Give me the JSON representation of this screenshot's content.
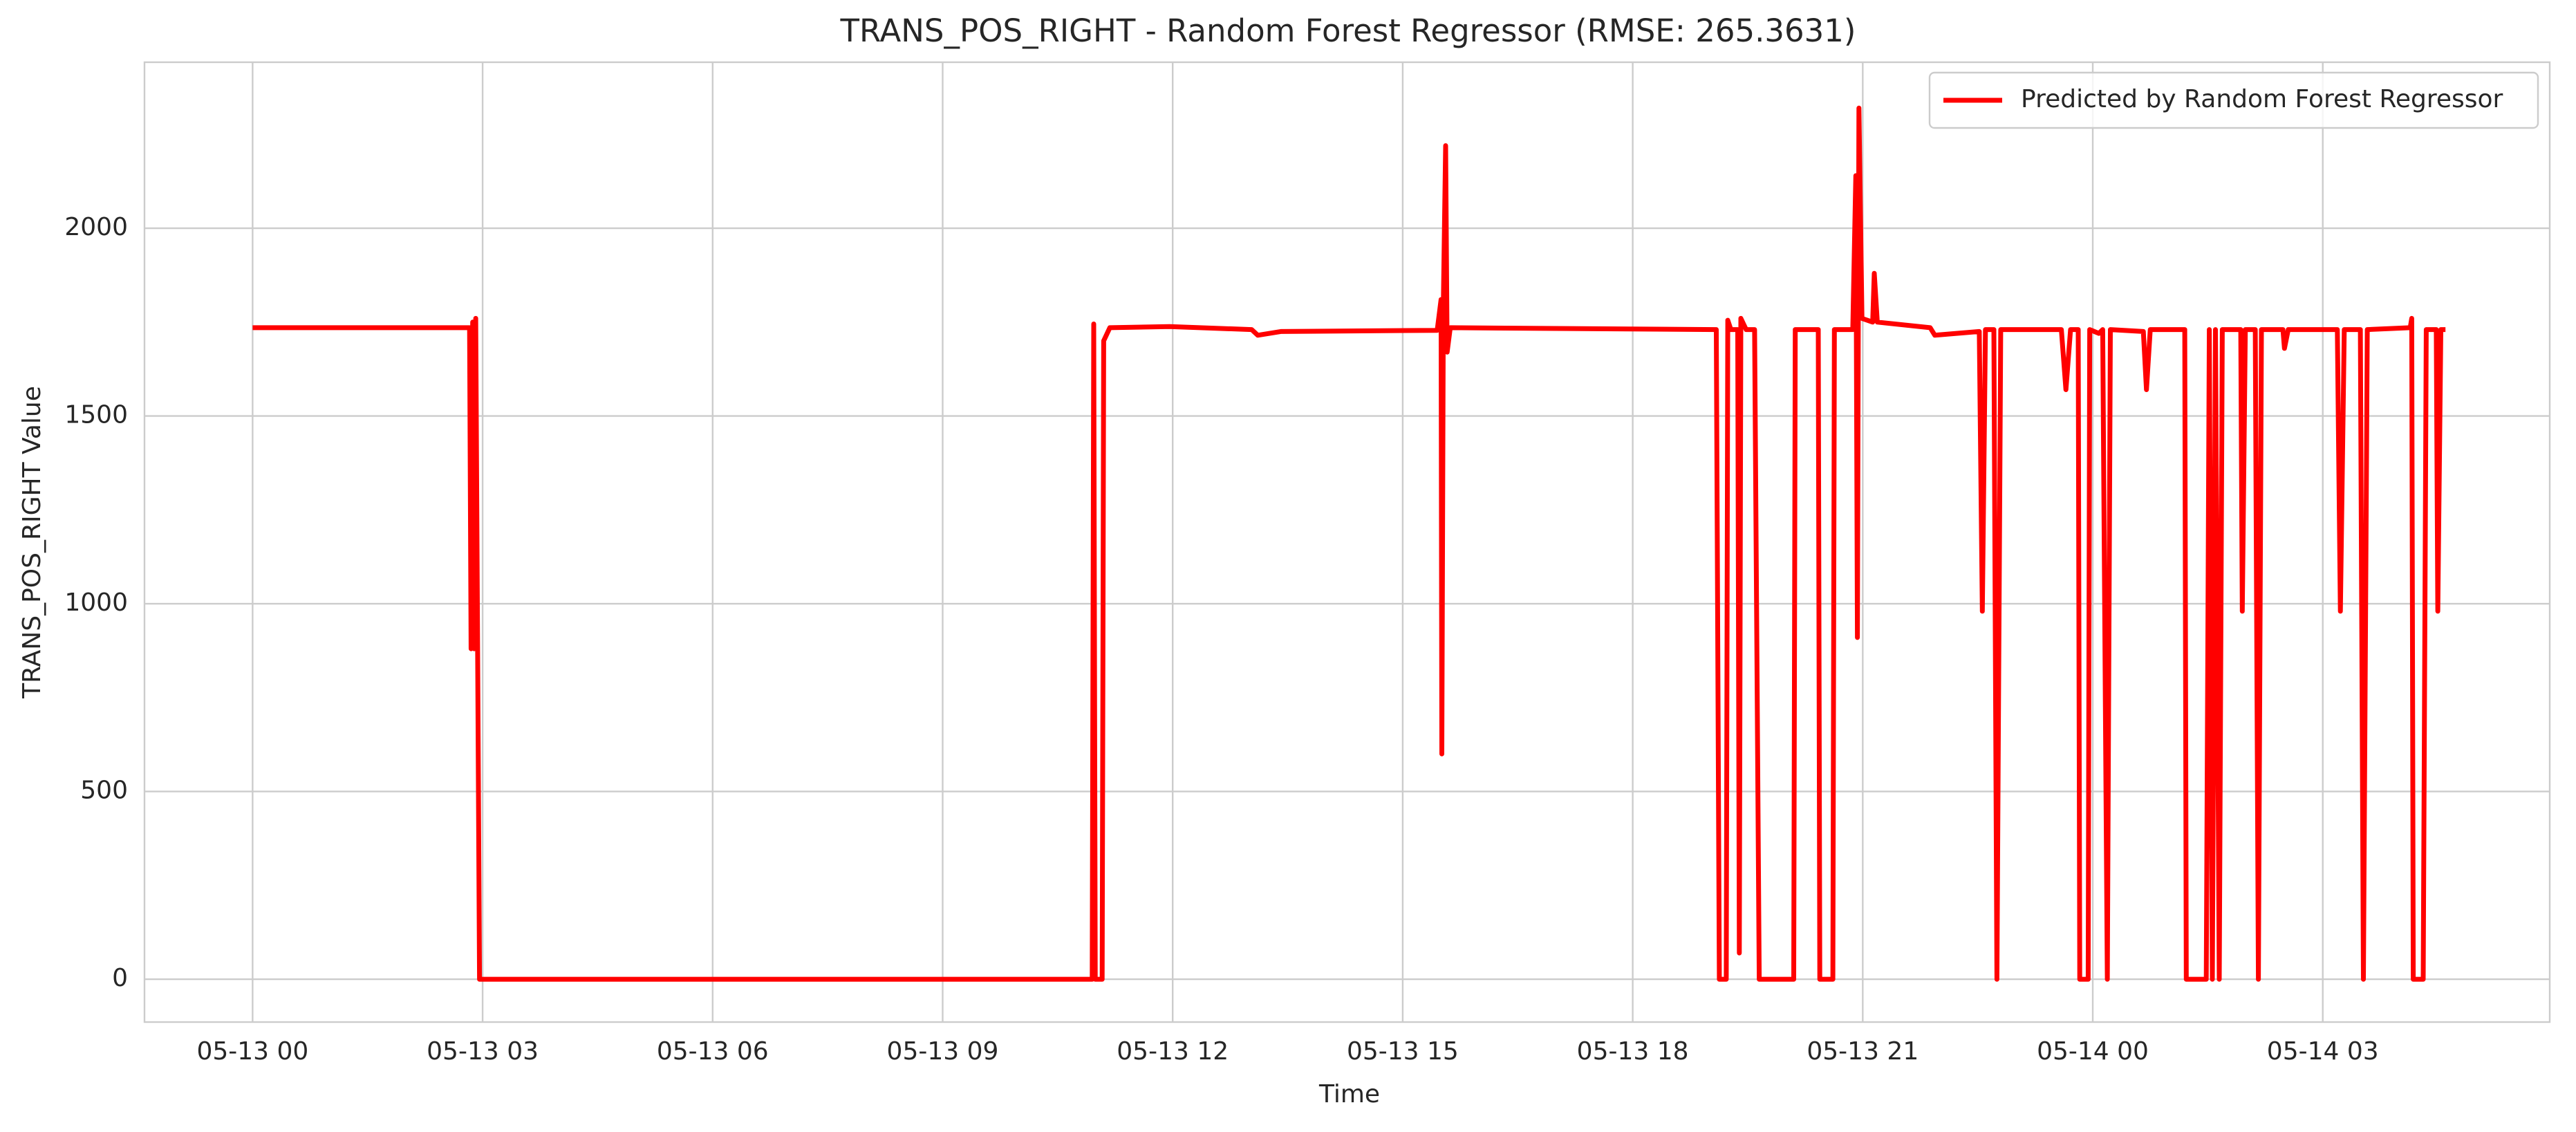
{
  "chart_data": {
    "type": "line",
    "title": "TRANS_POS_RIGHT - Random Forest Regressor (RMSE: 265.3631)",
    "x_label": "Time",
    "y_label": "TRANS_POS_RIGHT Value",
    "xlim": [
      -1.41,
      29.96
    ],
    "ylim": [
      -114,
      2442
    ],
    "xticks": [
      {
        "value": 0,
        "label": "05-13 00"
      },
      {
        "value": 3,
        "label": "05-13 03"
      },
      {
        "value": 6,
        "label": "05-13 06"
      },
      {
        "value": 9,
        "label": "05-13 09"
      },
      {
        "value": 12,
        "label": "05-13 12"
      },
      {
        "value": 15,
        "label": "05-13 15"
      },
      {
        "value": 18,
        "label": "05-13 18"
      },
      {
        "value": 21,
        "label": "05-13 21"
      },
      {
        "value": 24,
        "label": "05-14 00"
      },
      {
        "value": 27,
        "label": "05-14 03"
      }
    ],
    "yticks": [
      0,
      500,
      1000,
      1500,
      2000
    ],
    "grid": true,
    "legend": "upper right",
    "x": [
      0,
      2.83,
      2.85,
      2.87,
      2.89,
      2.91,
      2.96,
      10.95,
      10.97,
      10.99,
      11.08,
      11.1,
      11.18,
      11.96,
      13.03,
      13.11,
      13.41,
      15.45,
      15.5,
      15.51,
      15.53,
      15.56,
      15.58,
      15.62,
      19.09,
      19.13,
      19.22,
      19.24,
      19.28,
      19.37,
      19.39,
      19.41,
      19.48,
      19.59,
      19.65,
      20.1,
      20.12,
      20.42,
      20.44,
      20.61,
      20.63,
      20.87,
      20.91,
      20.93,
      20.95,
      20.99,
      21.13,
      21.15,
      21.19,
      21.88,
      21.94,
      22.52,
      22.56,
      22.6,
      22.71,
      22.75,
      22.8,
      23.59,
      23.65,
      23.71,
      23.81,
      23.83,
      23.94,
      23.96,
      24.08,
      24.13,
      24.19,
      24.23,
      24.66,
      24.7,
      24.75,
      25.2,
      25.22,
      25.48,
      25.52,
      25.56,
      25.6,
      25.65,
      25.69,
      25.93,
      25.95,
      25.99,
      26.12,
      26.16,
      26.2,
      26.48,
      26.5,
      26.55,
      27.19,
      27.23,
      27.28,
      27.49,
      27.53,
      27.58,
      28.14,
      28.16,
      28.18,
      28.31,
      28.35,
      28.48,
      28.5,
      28.54,
      28.6
    ],
    "series": [
      {
        "name": "Predicted by Random Forest Regressor",
        "color": "#ff0000",
        "values": [
          1735,
          1735,
          880,
          1750,
          880,
          1760,
          0,
          0,
          1745,
          0,
          0,
          1700,
          1735,
          1738,
          1730,
          1715,
          1725,
          1728,
          1810,
          600,
          1800,
          2220,
          1670,
          1735,
          1730,
          0,
          0,
          1755,
          1730,
          1730,
          70,
          1760,
          1730,
          1730,
          0,
          0,
          1730,
          1730,
          0,
          0,
          1730,
          1730,
          2140,
          910,
          2320,
          1760,
          1750,
          1880,
          1750,
          1735,
          1715,
          1725,
          980,
          1730,
          1730,
          0,
          1730,
          1730,
          1570,
          1730,
          1730,
          0,
          0,
          1730,
          1720,
          1730,
          0,
          1730,
          1725,
          1570,
          1730,
          1730,
          0,
          0,
          1730,
          0,
          1730,
          0,
          1730,
          1730,
          980,
          1730,
          1730,
          0,
          1730,
          1730,
          1680,
          1730,
          1730,
          980,
          1730,
          1730,
          0,
          1730,
          1735,
          1760,
          0,
          0,
          1730,
          1730,
          980,
          1730,
          1730
        ]
      }
    ]
  }
}
